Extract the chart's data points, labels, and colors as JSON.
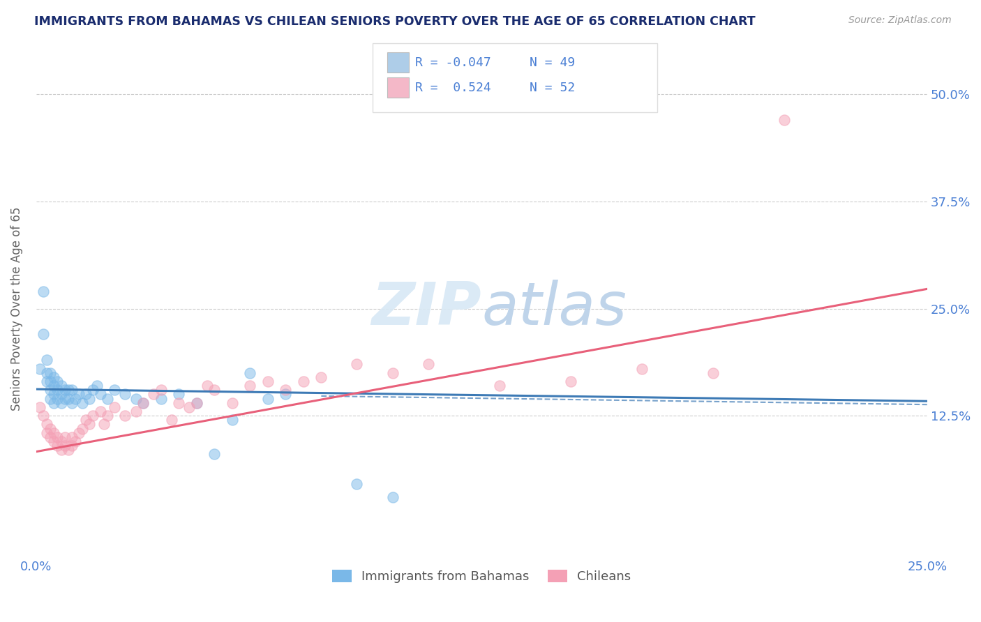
{
  "title": "IMMIGRANTS FROM BAHAMAS VS CHILEAN SENIORS POVERTY OVER THE AGE OF 65 CORRELATION CHART",
  "source": "Source: ZipAtlas.com",
  "ylabel": "Seniors Poverty Over the Age of 65",
  "x_tick_labels": [
    "0.0%",
    "25.0%"
  ],
  "x_tick_pos": [
    0.0,
    0.25
  ],
  "y_ticks": [
    0.125,
    0.25,
    0.375,
    0.5
  ],
  "y_tick_labels": [
    "12.5%",
    "25.0%",
    "37.5%",
    "50.0%"
  ],
  "xlim": [
    0.0,
    0.25
  ],
  "ylim": [
    -0.04,
    0.54
  ],
  "legend_label1": "Immigrants from Bahamas",
  "legend_label2": "Chileans",
  "R1": "-0.047",
  "N1": "49",
  "R2": "0.524",
  "N2": "52",
  "color1": "#7ab8e8",
  "color2": "#f4a0b5",
  "color1_light": "#aecde8",
  "color2_light": "#f4b8c8",
  "line1_color": "#3d7ab5",
  "line2_color": "#e8607a",
  "title_color": "#1a2c6e",
  "axis_color": "#4a7fd4",
  "watermark_color": "#d8e8f5",
  "scatter1_x": [
    0.001,
    0.002,
    0.002,
    0.003,
    0.003,
    0.003,
    0.004,
    0.004,
    0.004,
    0.004,
    0.005,
    0.005,
    0.005,
    0.005,
    0.006,
    0.006,
    0.006,
    0.007,
    0.007,
    0.007,
    0.008,
    0.008,
    0.009,
    0.009,
    0.01,
    0.01,
    0.011,
    0.012,
    0.013,
    0.014,
    0.015,
    0.016,
    0.017,
    0.018,
    0.02,
    0.022,
    0.025,
    0.028,
    0.03,
    0.035,
    0.04,
    0.045,
    0.05,
    0.055,
    0.06,
    0.065,
    0.07,
    0.09,
    0.1
  ],
  "scatter1_y": [
    0.18,
    0.22,
    0.27,
    0.165,
    0.175,
    0.19,
    0.145,
    0.155,
    0.165,
    0.175,
    0.14,
    0.15,
    0.16,
    0.17,
    0.145,
    0.155,
    0.165,
    0.14,
    0.15,
    0.16,
    0.145,
    0.155,
    0.145,
    0.155,
    0.14,
    0.155,
    0.145,
    0.15,
    0.14,
    0.15,
    0.145,
    0.155,
    0.16,
    0.15,
    0.145,
    0.155,
    0.15,
    0.145,
    0.14,
    0.145,
    0.15,
    0.14,
    0.08,
    0.12,
    0.175,
    0.145,
    0.15,
    0.045,
    0.03
  ],
  "scatter2_x": [
    0.001,
    0.002,
    0.003,
    0.003,
    0.004,
    0.004,
    0.005,
    0.005,
    0.006,
    0.006,
    0.007,
    0.007,
    0.008,
    0.008,
    0.009,
    0.01,
    0.01,
    0.011,
    0.012,
    0.013,
    0.014,
    0.015,
    0.016,
    0.018,
    0.019,
    0.02,
    0.022,
    0.025,
    0.028,
    0.03,
    0.033,
    0.035,
    0.038,
    0.04,
    0.043,
    0.045,
    0.048,
    0.05,
    0.055,
    0.06,
    0.065,
    0.07,
    0.075,
    0.08,
    0.09,
    0.1,
    0.11,
    0.13,
    0.15,
    0.17,
    0.19,
    0.21
  ],
  "scatter2_y": [
    0.135,
    0.125,
    0.105,
    0.115,
    0.1,
    0.11,
    0.095,
    0.105,
    0.09,
    0.1,
    0.085,
    0.095,
    0.09,
    0.1,
    0.085,
    0.09,
    0.1,
    0.095,
    0.105,
    0.11,
    0.12,
    0.115,
    0.125,
    0.13,
    0.115,
    0.125,
    0.135,
    0.125,
    0.13,
    0.14,
    0.15,
    0.155,
    0.12,
    0.14,
    0.135,
    0.14,
    0.16,
    0.155,
    0.14,
    0.16,
    0.165,
    0.155,
    0.165,
    0.17,
    0.185,
    0.175,
    0.185,
    0.16,
    0.165,
    0.18,
    0.175,
    0.47
  ],
  "line1_x": [
    0.0,
    0.25
  ],
  "line1_y": [
    0.156,
    0.142
  ],
  "line2_x": [
    0.0,
    0.25
  ],
  "line2_y": [
    0.083,
    0.273
  ],
  "dash_line_x": [
    0.08,
    0.25
  ],
  "dash_line_y": [
    0.148,
    0.138
  ]
}
